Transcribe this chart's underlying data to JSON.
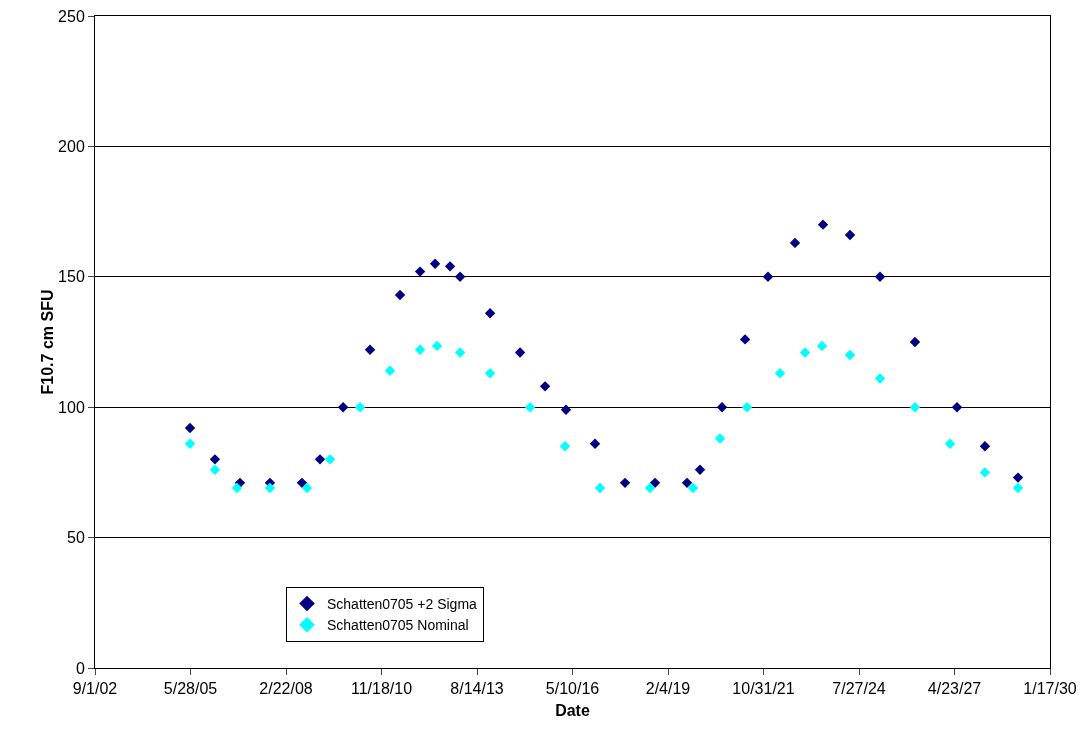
{
  "chart_data": {
    "type": "scatter",
    "xlabel": "Date",
    "ylabel": "F10.7 cm SFU",
    "marker": "diamond",
    "grid": "y",
    "legend": "bottom left",
    "xlim": [
      "2002-09-01",
      "2030-01-17"
    ],
    "xticks": [
      {
        "value": "2002-09-01",
        "label": "9/1/02"
      },
      {
        "value": "2005-05-28",
        "label": "5/28/05"
      },
      {
        "value": "2008-02-22",
        "label": "2/22/08"
      },
      {
        "value": "2010-11-18",
        "label": "11/18/10"
      },
      {
        "value": "2013-08-14",
        "label": "8/14/13"
      },
      {
        "value": "2016-05-10",
        "label": "5/10/16"
      },
      {
        "value": "2019-02-04",
        "label": "2/4/19"
      },
      {
        "value": "2021-10-31",
        "label": "10/31/21"
      },
      {
        "value": "2024-07-27",
        "label": "7/27/24"
      },
      {
        "value": "2027-04-23",
        "label": "4/23/27"
      },
      {
        "value": "2030-01-17",
        "label": "1/17/30"
      }
    ],
    "ylim": [
      0,
      250
    ],
    "yticks": [
      0,
      50,
      100,
      150,
      200,
      250
    ],
    "series": [
      {
        "name": "Schatten0705 +2 Sigma",
        "color": "#000080",
        "x": [
          "2005-05-23",
          "2006-02-08",
          "2006-10-28",
          "2007-09-07",
          "2008-08-07",
          "2009-02-12",
          "2009-10-12",
          "2010-07-21",
          "2011-05-31",
          "2011-12-27",
          "2012-06-01",
          "2012-11-05",
          "2013-02-18",
          "2013-12-29",
          "2014-11-08",
          "2015-07-28",
          "2016-03-03",
          "2017-01-01",
          "2017-11-11",
          "2018-09-21",
          "2019-08-22",
          "2020-01-05",
          "2020-08-23",
          "2021-04-21",
          "2021-12-17",
          "2022-09-26",
          "2023-07-16",
          "2024-04-24",
          "2025-03-04",
          "2026-03-05",
          "2027-05-19",
          "2028-03-07",
          "2029-02-16"
        ],
        "values": [
          92,
          80,
          71,
          71,
          71,
          80,
          100,
          122,
          143,
          152,
          155,
          154,
          150,
          136,
          121,
          108,
          99,
          86,
          71,
          71,
          71,
          76,
          100,
          126,
          150,
          163,
          170,
          166,
          150,
          125,
          100,
          85,
          73
        ]
      },
      {
        "name": "Schatten0705 Nominal",
        "color": "#00ffff",
        "x": [
          "2005-05-23",
          "2006-02-08",
          "2006-09-27",
          "2007-09-07",
          "2008-09-29",
          "2009-05-28",
          "2010-04-08",
          "2011-02-15",
          "2011-12-27",
          "2012-06-22",
          "2013-02-18",
          "2013-12-29",
          "2015-02-21",
          "2016-02-22",
          "2017-02-22",
          "2018-07-31",
          "2019-10-24",
          "2020-08-02",
          "2021-05-11",
          "2022-04-22",
          "2023-01-09",
          "2023-07-06",
          "2024-04-24",
          "2025-03-04",
          "2026-03-05",
          "2027-03-07",
          "2028-03-07",
          "2029-02-16"
        ],
        "values": [
          86,
          76,
          69,
          69,
          69,
          80,
          100,
          114,
          122,
          123.5,
          121,
          113,
          100,
          85,
          69,
          69,
          69,
          88,
          100,
          113,
          121,
          123.5,
          120,
          111,
          100,
          86,
          75,
          69
        ]
      }
    ]
  }
}
